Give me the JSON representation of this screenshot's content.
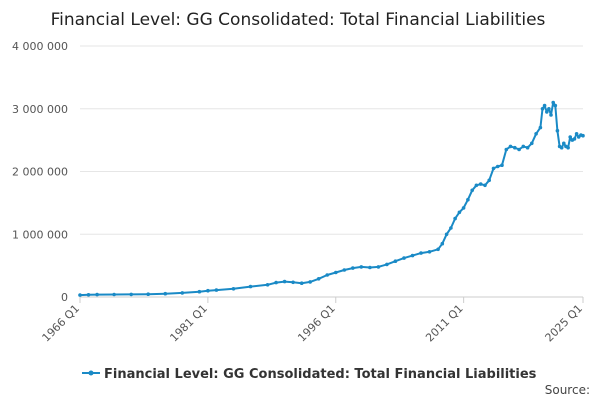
{
  "chart_data": {
    "type": "line",
    "title": "Financial Level: GG Consolidated: Total Financial Liabilities",
    "xlabel": "",
    "ylabel": "",
    "x_ticks": [
      "1966 Q1",
      "1981 Q1",
      "1996 Q1",
      "2011 Q1",
      "2025 Q1"
    ],
    "y_ticks": [
      "0",
      "1 000 000",
      "2 000 000",
      "3 000 000",
      "4 000 000"
    ],
    "ylim": [
      0,
      4000000
    ],
    "xlim": [
      "1966 Q1",
      "2025 Q1"
    ],
    "grid": "horizontal",
    "legend_position": "bottom",
    "series": [
      {
        "name": "Financial Level: GG Consolidated: Total Financial Liabilities",
        "color": "#1a8ac6",
        "points": [
          [
            "1966 Q1",
            30000
          ],
          [
            "1967 Q1",
            35000
          ],
          [
            "1968 Q1",
            38000
          ],
          [
            "1970 Q1",
            40000
          ],
          [
            "1972 Q1",
            42000
          ],
          [
            "1974 Q1",
            45000
          ],
          [
            "1976 Q1",
            52000
          ],
          [
            "1978 Q1",
            65000
          ],
          [
            "1980 Q1",
            85000
          ],
          [
            "1981 Q1",
            100000
          ],
          [
            "1982 Q1",
            110000
          ],
          [
            "1984 Q1",
            130000
          ],
          [
            "1986 Q1",
            165000
          ],
          [
            "1988 Q1",
            195000
          ],
          [
            "1989 Q1",
            230000
          ],
          [
            "1990 Q1",
            245000
          ],
          [
            "1991 Q1",
            235000
          ],
          [
            "1992 Q1",
            220000
          ],
          [
            "1993 Q1",
            240000
          ],
          [
            "1994 Q1",
            290000
          ],
          [
            "1995 Q1",
            350000
          ],
          [
            "1996 Q1",
            390000
          ],
          [
            "1997 Q1",
            430000
          ],
          [
            "1998 Q1",
            460000
          ],
          [
            "1999 Q1",
            480000
          ],
          [
            "2000 Q1",
            470000
          ],
          [
            "2001 Q1",
            480000
          ],
          [
            "2002 Q1",
            520000
          ],
          [
            "2003 Q1",
            570000
          ],
          [
            "2004 Q1",
            620000
          ],
          [
            "2005 Q1",
            660000
          ],
          [
            "2006 Q1",
            700000
          ],
          [
            "2007 Q1",
            720000
          ],
          [
            "2008 Q1",
            760000
          ],
          [
            "2008 Q3",
            850000
          ],
          [
            "2009 Q1",
            1000000
          ],
          [
            "2009 Q3",
            1100000
          ],
          [
            "2010 Q1",
            1250000
          ],
          [
            "2010 Q3",
            1350000
          ],
          [
            "2011 Q1",
            1420000
          ],
          [
            "2011 Q3",
            1550000
          ],
          [
            "2012 Q1",
            1700000
          ],
          [
            "2012 Q3",
            1780000
          ],
          [
            "2013 Q1",
            1800000
          ],
          [
            "2013 Q3",
            1780000
          ],
          [
            "2014 Q1",
            1860000
          ],
          [
            "2014 Q3",
            2050000
          ],
          [
            "2015 Q1",
            2080000
          ],
          [
            "2015 Q3",
            2100000
          ],
          [
            "2016 Q1",
            2350000
          ],
          [
            "2016 Q3",
            2400000
          ],
          [
            "2017 Q1",
            2380000
          ],
          [
            "2017 Q3",
            2350000
          ],
          [
            "2018 Q1",
            2400000
          ],
          [
            "2018 Q3",
            2380000
          ],
          [
            "2019 Q1",
            2450000
          ],
          [
            "2019 Q3",
            2600000
          ],
          [
            "2020 Q1",
            2700000
          ],
          [
            "2020 Q2",
            3000000
          ],
          [
            "2020 Q3",
            3050000
          ],
          [
            "2020 Q4",
            2950000
          ],
          [
            "2021 Q1",
            3000000
          ],
          [
            "2021 Q2",
            2900000
          ],
          [
            "2021 Q3",
            3100000
          ],
          [
            "2021 Q4",
            3050000
          ],
          [
            "2022 Q1",
            2650000
          ],
          [
            "2022 Q2",
            2400000
          ],
          [
            "2022 Q3",
            2380000
          ],
          [
            "2022 Q4",
            2450000
          ],
          [
            "2023 Q1",
            2400000
          ],
          [
            "2023 Q2",
            2380000
          ],
          [
            "2023 Q3",
            2550000
          ],
          [
            "2023 Q4",
            2500000
          ],
          [
            "2024 Q1",
            2520000
          ],
          [
            "2024 Q2",
            2600000
          ],
          [
            "2024 Q3",
            2550000
          ],
          [
            "2024 Q4",
            2580000
          ],
          [
            "2025 Q1",
            2570000
          ]
        ]
      }
    ]
  },
  "source_label": "Source:"
}
